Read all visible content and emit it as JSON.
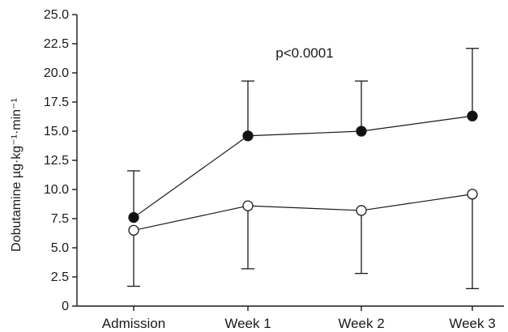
{
  "chart_data": {
    "type": "line",
    "title": "",
    "xlabel": "",
    "ylabel": "Dobutamine µg·kg⁻¹·min⁻¹",
    "ylim": [
      0,
      25
    ],
    "yticks": [
      "0",
      "2.5",
      "5.0",
      "7.5",
      "10.0",
      "12.5",
      "15.0",
      "17.5",
      "20.0",
      "22.5",
      "25.0"
    ],
    "categories": [
      "Admission",
      "Week 1",
      "Week 2",
      "Week 3"
    ],
    "series": [
      {
        "marker": "filled-circle",
        "values": [
          7.6,
          14.6,
          15.0,
          16.3
        ],
        "error_upper": [
          11.6,
          19.3,
          19.3,
          22.1
        ],
        "error_lower": [
          null,
          null,
          null,
          null
        ]
      },
      {
        "marker": "open-circle",
        "values": [
          6.5,
          8.6,
          8.2,
          9.6
        ],
        "error_upper": [
          null,
          null,
          null,
          null
        ],
        "error_lower": [
          1.7,
          3.2,
          2.8,
          1.5
        ]
      }
    ],
    "annotations": [
      "p<0.0001"
    ],
    "grid": false,
    "legend": "none"
  },
  "colors": {
    "axis": "#1a1a1a",
    "line": "#1a1a1a",
    "filled_marker": "#111111",
    "open_marker_fill": "#ffffff"
  }
}
